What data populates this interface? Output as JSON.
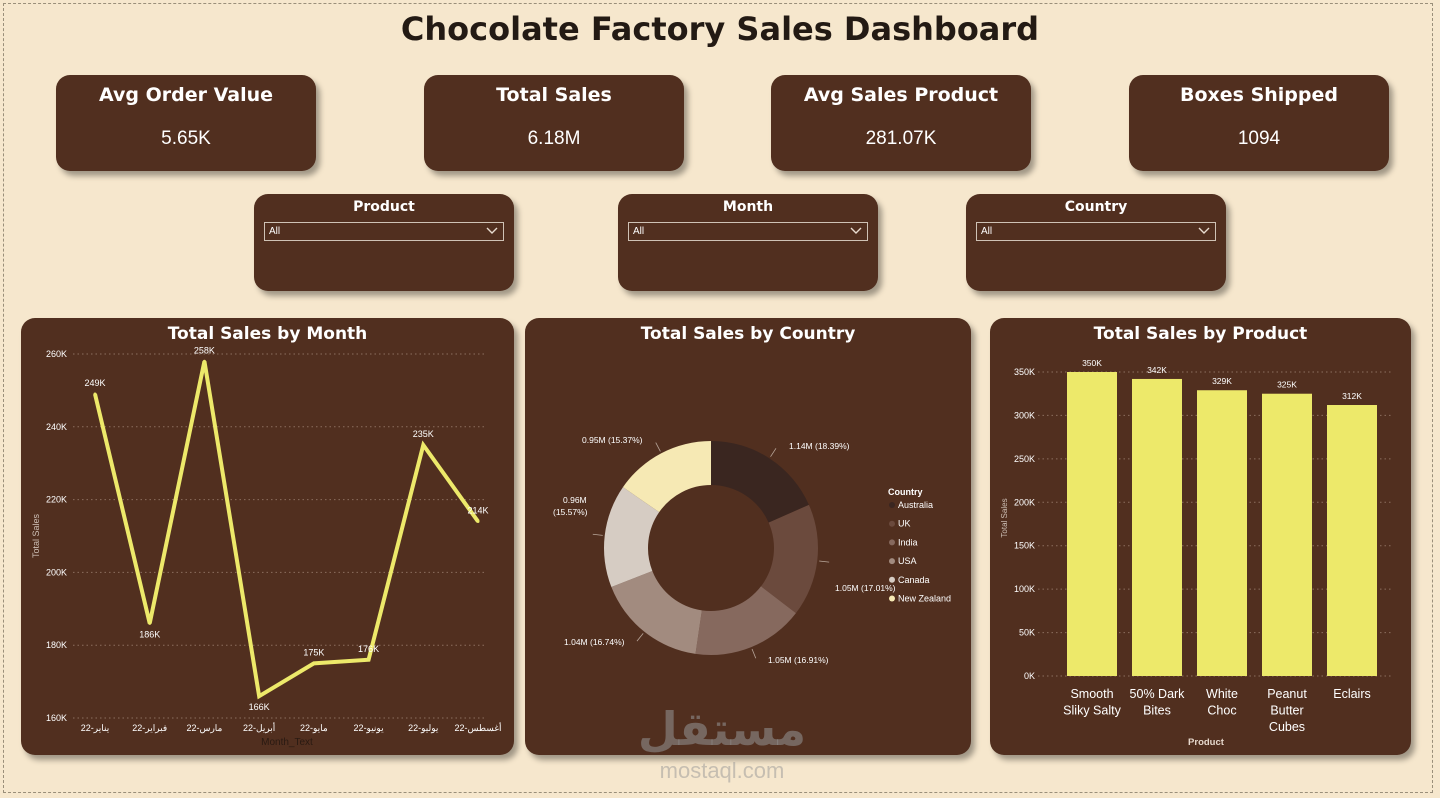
{
  "title": "Chocolate Factory Sales Dashboard",
  "kpis": [
    {
      "label": "Avg Order Value",
      "value": "5.65K"
    },
    {
      "label": "Total Sales",
      "value": "6.18M"
    },
    {
      "label": "Avg Sales Product",
      "value": "281.07K"
    },
    {
      "label": "Boxes Shipped",
      "value": "1094"
    }
  ],
  "slicers": [
    {
      "label": "Product",
      "value": "All"
    },
    {
      "label": "Month",
      "value": "All"
    },
    {
      "label": "Country",
      "value": "All"
    }
  ],
  "watermark": {
    "text": "mostaql.com",
    "logo_text": "مستقل"
  },
  "colors": {
    "background": "#f6e7cd",
    "card": "#512f1f",
    "accent_yellow": "#ede96a"
  },
  "charts": {
    "month": {
      "title": "Total Sales by Month",
      "ylabel": "Total Sales",
      "xlabel": "Month_Text",
      "yticks": [
        "160K",
        "180K",
        "200K",
        "220K",
        "240K",
        "260K"
      ]
    },
    "country": {
      "title": "Total Sales by Country",
      "legend_title": "Country"
    },
    "product": {
      "title": "Total Sales by Product",
      "ylabel": "Total Sales",
      "xlabel": "Product",
      "yticks": [
        "0K",
        "50K",
        "100K",
        "150K",
        "200K",
        "250K",
        "300K",
        "350K"
      ]
    }
  },
  "chart_data": [
    {
      "type": "line",
      "title": "Total Sales by Month",
      "xlabel": "Month_Text",
      "ylabel": "Total Sales",
      "x": [
        "يناير-22",
        "فبراير-22",
        "مارس-22",
        "أبريل-22",
        "مايو-22",
        "يونيو-22",
        "يوليو-22",
        "أغسطس-22"
      ],
      "series": [
        {
          "values": [
            249,
            186,
            258,
            166,
            175,
            176,
            235,
            214
          ],
          "labels": [
            "249K",
            "186K",
            "258K",
            "166K",
            "175K",
            "176K",
            "235K",
            "214K"
          ]
        }
      ],
      "ylim": [
        160,
        260
      ],
      "unit": "K",
      "grid": true,
      "color": "#ede96a"
    },
    {
      "type": "pie",
      "title": "Total Sales by Country",
      "donut": true,
      "legend_title": "Country",
      "legend_position": "right",
      "slices": [
        {
          "label": "Australia",
          "value": 18.39,
          "text": "1.14M (18.39%)",
          "color": "#3a2620"
        },
        {
          "label": "UK",
          "value": 17.01,
          "text": "1.05M (17.01%)",
          "color": "#6b4a3d"
        },
        {
          "label": "India",
          "value": 16.91,
          "text": "1.05M (16.91%)",
          "color": "#86695e"
        },
        {
          "label": "USA",
          "value": 16.74,
          "text": "1.04M (16.74%)",
          "color": "#a28b7f"
        },
        {
          "label": "Canada",
          "value": 15.57,
          "text_line1": "0.96M",
          "text_line2": "(15.57%)",
          "color": "#d6ccc3"
        },
        {
          "label": "New Zealand",
          "value": 15.37,
          "text": "0.95M (15.37%)",
          "color": "#f6e9b4"
        }
      ]
    },
    {
      "type": "bar",
      "title": "Total Sales by Product",
      "xlabel": "Product",
      "ylabel": "Total Sales",
      "categories": [
        [
          "Smooth",
          "Sliky Salty"
        ],
        [
          "50% Dark",
          "Bites"
        ],
        [
          "White",
          "Choc"
        ],
        [
          "Peanut",
          "Butter",
          "Cubes"
        ],
        [
          "Eclairs"
        ]
      ],
      "values": [
        350,
        342,
        329,
        325,
        312
      ],
      "labels": [
        "350K",
        "342K",
        "329K",
        "325K",
        "312K"
      ],
      "ylim": [
        0,
        350
      ],
      "unit": "K",
      "grid": true,
      "color": "#ede96a"
    }
  ]
}
